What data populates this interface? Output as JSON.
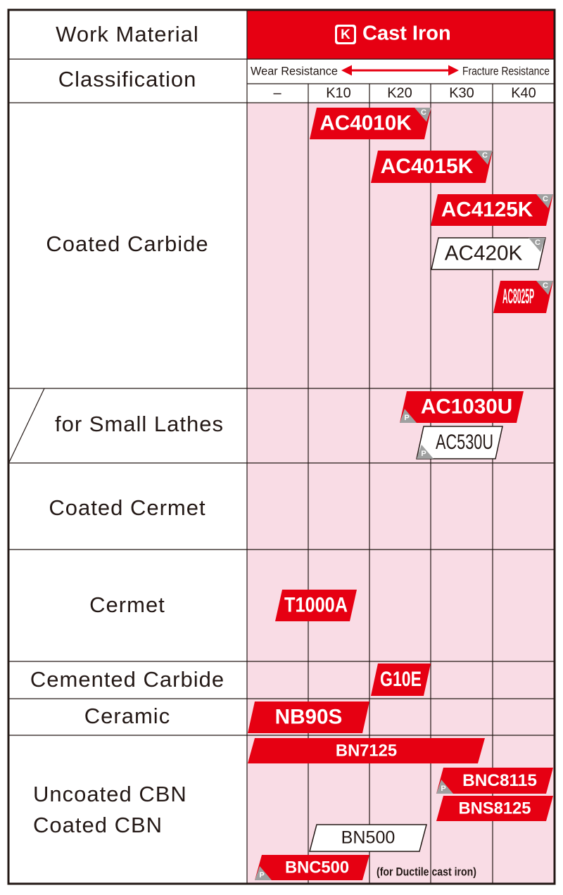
{
  "header": {
    "work_material": "Work Material",
    "iso_key": "K",
    "material": "Cast Iron"
  },
  "classification": {
    "label": "Classification",
    "wear": "Wear Resistance",
    "fracture": "Fracture Resistance",
    "columns": [
      "–",
      "K10",
      "K20",
      "K30",
      "K40"
    ]
  },
  "rows": [
    {
      "lines": [
        "Coated Carbide"
      ]
    },
    {
      "lines": [
        "for Small Lathes"
      ]
    },
    {
      "lines": [
        "Coated Cermet"
      ]
    },
    {
      "lines": [
        "Cermet"
      ]
    },
    {
      "lines": [
        "Cemented Carbide"
      ]
    },
    {
      "lines": [
        "Ceramic"
      ]
    },
    {
      "lines": [
        "Uncoated CBN",
        "Coated CBN"
      ]
    }
  ],
  "grades": [
    {
      "name": "AC4010K",
      "color": "#e60012",
      "marker": "C"
    },
    {
      "name": "AC4015K",
      "color": "#e60012",
      "marker": "C"
    },
    {
      "name": "AC4125K",
      "color": "#e60012",
      "marker": "C"
    },
    {
      "name": "AC420K",
      "color": "#ffffff",
      "marker": "C"
    },
    {
      "name": "AC8025P",
      "color": "#e60012",
      "marker": "C"
    },
    {
      "name": "AC1030U",
      "color": "#e60012",
      "marker": "P"
    },
    {
      "name": "AC530U",
      "color": "#ffffff",
      "marker": "P"
    },
    {
      "name": "T1000A",
      "color": "#e60012"
    },
    {
      "name": "G10E",
      "color": "#e60012"
    },
    {
      "name": "NB90S",
      "color": "#e60012"
    },
    {
      "name": "BN7125",
      "color": "#e60012"
    },
    {
      "name": "BNC8115",
      "color": "#e60012",
      "marker": "P"
    },
    {
      "name": "BNS8125",
      "color": "#e60012"
    },
    {
      "name": "BN500",
      "color": "#ffffff"
    },
    {
      "name": "BNC500",
      "color": "#e60012",
      "marker": "P"
    }
  ],
  "note": "(for Ductile cast iron)"
}
